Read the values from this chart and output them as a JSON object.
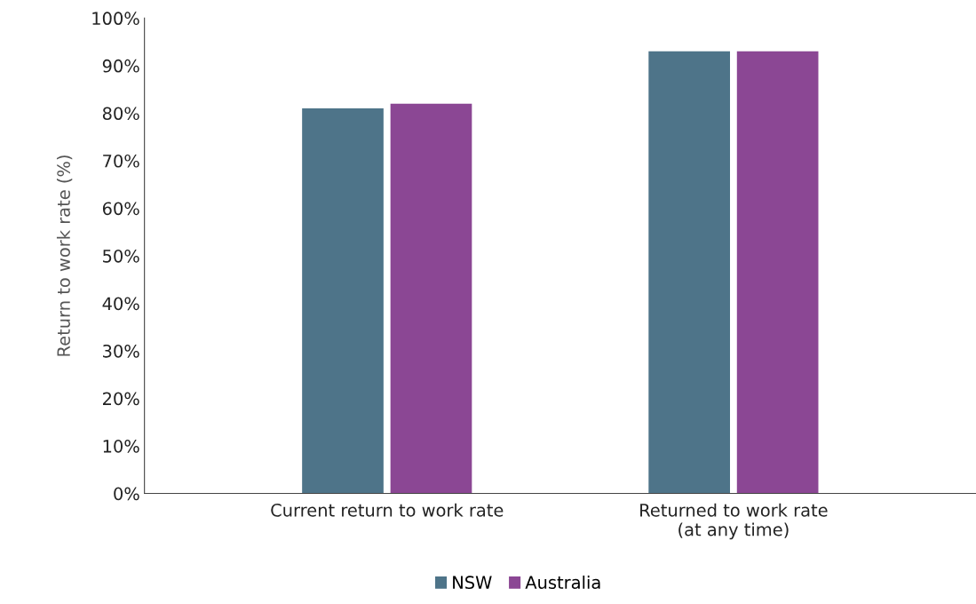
{
  "chart_data": {
    "type": "bar",
    "ylabel": "Return to work rate (%)",
    "categories": [
      "Current return to work rate",
      "Returned to work rate\n(at any time)"
    ],
    "series": [
      {
        "name": "NSW",
        "color": "#4e7489",
        "values": [
          81,
          93
        ]
      },
      {
        "name": "Australia",
        "color": "#8b4794",
        "values": [
          82,
          93
        ]
      }
    ],
    "ylim": [
      0,
      100
    ],
    "yticks": [
      {
        "value": 0,
        "label": "0%"
      },
      {
        "value": 10,
        "label": "10%"
      },
      {
        "value": 20,
        "label": "20%"
      },
      {
        "value": 30,
        "label": "30%"
      },
      {
        "value": 40,
        "label": "40%"
      },
      {
        "value": 50,
        "label": "50%"
      },
      {
        "value": 60,
        "label": "60%"
      },
      {
        "value": 70,
        "label": "70%"
      },
      {
        "value": 80,
        "label": "80%"
      },
      {
        "value": 90,
        "label": "90%"
      },
      {
        "value": 100,
        "label": "100%"
      }
    ],
    "grid": false,
    "legend": "bottom"
  }
}
